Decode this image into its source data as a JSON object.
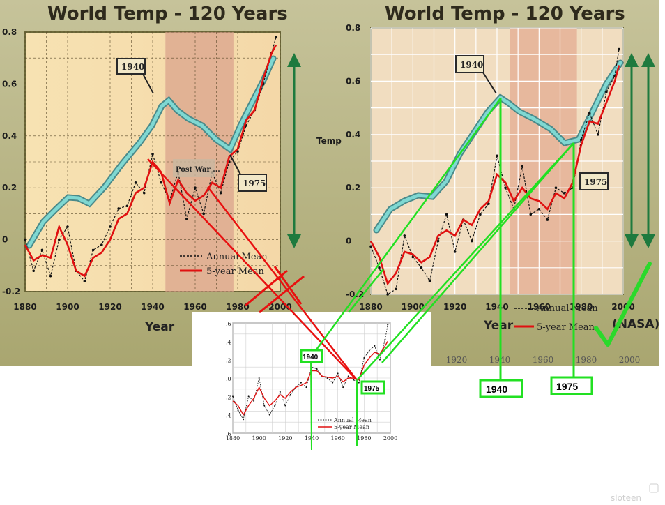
{
  "chart_data": [
    {
      "id": "left-panel",
      "type": "line",
      "title": "World Temp - 120 Years",
      "xlabel": "Year",
      "ylabel": "",
      "xlim": [
        1880,
        2000
      ],
      "ylim": [
        -0.2,
        0.8
      ],
      "x_ticks": [
        "1880",
        "1900",
        "1920",
        "1940",
        "1960",
        "1980",
        "2000"
      ],
      "y_ticks": [
        "-0.2",
        "0",
        "0.2",
        "0.4",
        "0.6",
        "0.8"
      ],
      "legend": [
        "Annual Mean",
        "5-year Mean"
      ],
      "annotations": [
        "1940",
        "1975",
        "Post War ..."
      ],
      "series": [
        {
          "name": "Annual Mean",
          "x": [
            1880,
            1884,
            1888,
            1892,
            1896,
            1900,
            1904,
            1908,
            1912,
            1916,
            1920,
            1924,
            1928,
            1932,
            1936,
            1940,
            1944,
            1948,
            1952,
            1956,
            1960,
            1964,
            1968,
            1972,
            1976,
            1980,
            1984,
            1988,
            1992,
            1996,
            1998
          ],
          "y": [
            0.0,
            -0.12,
            -0.04,
            -0.14,
            0.0,
            0.05,
            -0.12,
            -0.16,
            -0.04,
            -0.02,
            0.05,
            0.12,
            0.13,
            0.22,
            0.18,
            0.33,
            0.22,
            0.15,
            0.26,
            0.08,
            0.2,
            0.1,
            0.26,
            0.18,
            0.3,
            0.34,
            0.44,
            0.5,
            0.6,
            0.72,
            0.78
          ]
        },
        {
          "name": "5-year Mean",
          "x": [
            1880,
            1884,
            1888,
            1892,
            1896,
            1900,
            1904,
            1908,
            1912,
            1916,
            1920,
            1924,
            1928,
            1932,
            1936,
            1940,
            1944,
            1948,
            1952,
            1956,
            1960,
            1964,
            1968,
            1972,
            1976,
            1980,
            1984,
            1988,
            1992,
            1996,
            1998
          ],
          "y": [
            -0.02,
            -0.08,
            -0.06,
            -0.07,
            0.05,
            -0.02,
            -0.12,
            -0.14,
            -0.07,
            -0.05,
            0.0,
            0.08,
            0.1,
            0.18,
            0.2,
            0.3,
            0.26,
            0.14,
            0.23,
            0.18,
            0.15,
            0.17,
            0.22,
            0.2,
            0.32,
            0.35,
            0.46,
            0.5,
            0.62,
            0.72,
            0.75
          ]
        }
      ],
      "highlight_band": [
        1946,
        1978
      ]
    },
    {
      "id": "right-panel",
      "type": "line",
      "title": "World Temp - 120 Years",
      "xlabel": "Year",
      "ylabel": "Temp",
      "xlim": [
        1880,
        2000
      ],
      "ylim": [
        -0.2,
        0.8
      ],
      "x_ticks": [
        "1880",
        "1900",
        "1920",
        "1940",
        "1960",
        "1980",
        "2000"
      ],
      "y_ticks": [
        "-0.2",
        "0",
        "0.2",
        "0.4",
        "0.6",
        "0.8"
      ],
      "lower_x_ticks": [
        "1920",
        "1940",
        "1960",
        "1980",
        "2000"
      ],
      "legend": [
        "Annual Mean",
        "5-year Mean"
      ],
      "annotations": [
        "1940",
        "1975",
        "(NASA)"
      ],
      "series": [
        {
          "name": "Annual Mean",
          "x": [
            1880,
            1884,
            1888,
            1892,
            1896,
            1900,
            1904,
            1908,
            1912,
            1916,
            1920,
            1924,
            1928,
            1932,
            1936,
            1940,
            1944,
            1948,
            1952,
            1956,
            1960,
            1964,
            1968,
            1972,
            1976,
            1980,
            1984,
            1988,
            1992,
            1996,
            1998
          ],
          "y": [
            -0.02,
            -0.1,
            -0.2,
            -0.18,
            0.02,
            -0.06,
            -0.1,
            -0.15,
            0.0,
            0.1,
            -0.04,
            0.08,
            0.0,
            0.1,
            0.14,
            0.32,
            0.2,
            0.12,
            0.28,
            0.1,
            0.12,
            0.08,
            0.2,
            0.18,
            0.2,
            0.38,
            0.48,
            0.4,
            0.56,
            0.62,
            0.72
          ]
        },
        {
          "name": "5-year Mean",
          "x": [
            1880,
            1884,
            1888,
            1892,
            1896,
            1900,
            1904,
            1908,
            1912,
            1916,
            1920,
            1924,
            1928,
            1932,
            1936,
            1940,
            1944,
            1948,
            1952,
            1956,
            1960,
            1964,
            1968,
            1972,
            1976,
            1980,
            1984,
            1988,
            1992,
            1996,
            1998
          ],
          "y": [
            0.0,
            -0.06,
            -0.16,
            -0.12,
            -0.04,
            -0.05,
            -0.08,
            -0.06,
            0.02,
            0.04,
            0.02,
            0.08,
            0.06,
            0.12,
            0.15,
            0.25,
            0.22,
            0.15,
            0.2,
            0.16,
            0.15,
            0.12,
            0.18,
            0.16,
            0.22,
            0.36,
            0.45,
            0.44,
            0.52,
            0.6,
            0.66
          ]
        }
      ],
      "highlight_band": [
        1946,
        1978
      ]
    },
    {
      "id": "inset-panel",
      "type": "line",
      "title": "",
      "xlabel": "",
      "ylabel": "",
      "xlim": [
        1880,
        2000
      ],
      "ylim": [
        -0.6,
        0.6
      ],
      "x_ticks": [
        "1880",
        "1900",
        "1920",
        "1940",
        "1960",
        "1980",
        "2000"
      ],
      "y_ticks": [
        ".6",
        ".4",
        ".2",
        ".0",
        ".2",
        ".4",
        ".6"
      ],
      "legend": [
        "Annual Mean",
        "5-year Mean"
      ],
      "annotations": [
        "1940",
        "1975"
      ],
      "series": [
        {
          "name": "Annual Mean",
          "x": [
            1880,
            1884,
            1888,
            1892,
            1896,
            1900,
            1904,
            1908,
            1912,
            1916,
            1920,
            1924,
            1928,
            1932,
            1936,
            1940,
            1944,
            1948,
            1952,
            1956,
            1960,
            1964,
            1968,
            1972,
            1976,
            1980,
            1984,
            1988,
            1992,
            1996,
            1998
          ],
          "y": [
            -0.2,
            -0.35,
            -0.45,
            -0.2,
            -0.25,
            0.0,
            -0.3,
            -0.4,
            -0.3,
            -0.15,
            -0.3,
            -0.18,
            -0.1,
            -0.05,
            -0.1,
            0.12,
            0.1,
            0.02,
            0.0,
            -0.05,
            0.05,
            -0.1,
            0.02,
            -0.02,
            -0.05,
            0.22,
            0.3,
            0.35,
            0.2,
            0.42,
            0.58
          ]
        },
        {
          "name": "5-year Mean",
          "x": [
            1880,
            1884,
            1888,
            1892,
            1896,
            1900,
            1904,
            1908,
            1912,
            1916,
            1920,
            1924,
            1928,
            1932,
            1936,
            1940,
            1944,
            1948,
            1952,
            1956,
            1960,
            1964,
            1968,
            1972,
            1976,
            1980,
            1984,
            1988,
            1992,
            1996,
            1998
          ],
          "y": [
            -0.25,
            -0.3,
            -0.4,
            -0.3,
            -0.22,
            -0.1,
            -0.22,
            -0.3,
            -0.25,
            -0.18,
            -0.22,
            -0.15,
            -0.1,
            -0.08,
            -0.05,
            0.08,
            0.08,
            0.02,
            0.01,
            0.0,
            0.02,
            -0.04,
            0.0,
            0.0,
            -0.02,
            0.14,
            0.22,
            0.28,
            0.26,
            0.35,
            0.4
          ]
        }
      ]
    }
  ],
  "labels": {
    "box_1940": "1940",
    "box_1975": "1975",
    "watermark": "sloteen"
  },
  "colors": {
    "annual": "#111111",
    "five_year": "#e01010",
    "cyan_curve": "#6fd3cf",
    "green": "#22e022",
    "red_line": "#e81010",
    "band": "#d9a090"
  }
}
